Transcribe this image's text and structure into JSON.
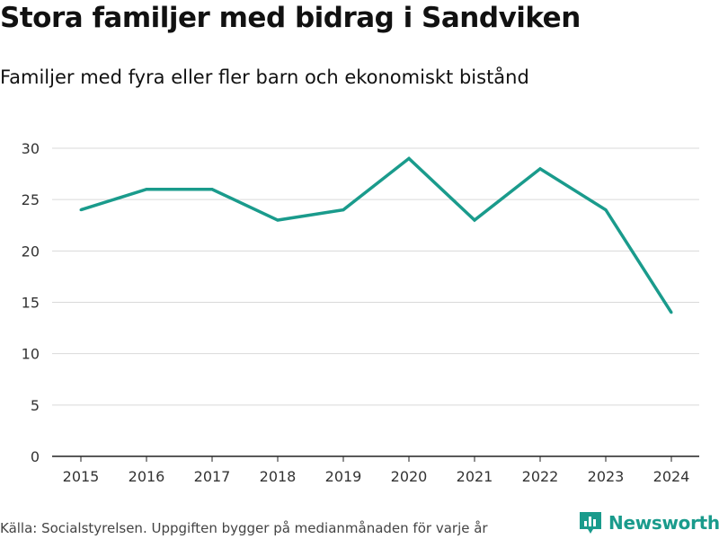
{
  "title": "Stora familjer med bidrag i Sandviken",
  "subtitle": "Familjer med fyra eller fler barn och ekonomiskt bistånd",
  "source": "Källa: Socialstyrelsen. Uppgiften bygger på medianmånaden för varje år",
  "brand": {
    "name": "Newsworthy",
    "icon": "bar-chart-logo-icon",
    "color": "#1a9b8c"
  },
  "chart_data": {
    "type": "line",
    "title": "Stora familjer med bidrag i Sandviken",
    "subtitle": "Familjer med fyra eller fler barn och ekonomiskt bistånd",
    "xlabel": "",
    "ylabel": "",
    "x": [
      "2015",
      "2016",
      "2017",
      "2018",
      "2019",
      "2020",
      "2021",
      "2022",
      "2023",
      "2024"
    ],
    "series": [
      {
        "name": "Sandviken",
        "values": [
          24,
          26,
          26,
          23,
          24,
          29,
          23,
          28,
          24,
          14
        ],
        "color": "#1a9b8c"
      }
    ],
    "ylim": [
      0,
      30
    ],
    "yticks": [
      0,
      5,
      10,
      15,
      20,
      25,
      30
    ],
    "grid": true,
    "legend": "none"
  }
}
